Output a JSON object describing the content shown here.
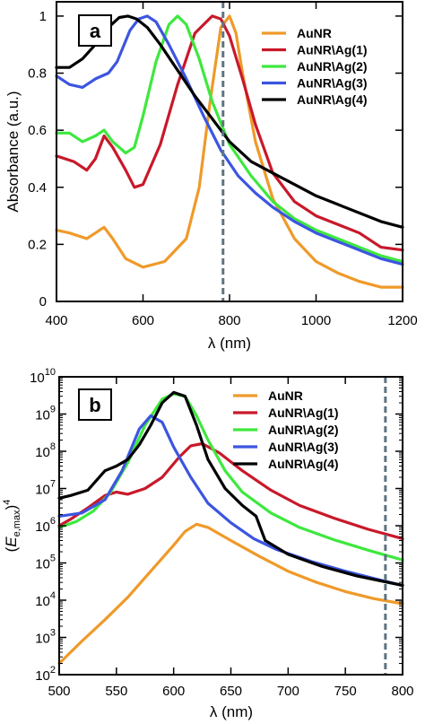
{
  "chart_data": [
    {
      "panel": "a",
      "type": "line",
      "xlabel": "λ (nm)",
      "ylabel": "Absorbance (a.u.)",
      "xlim": [
        400,
        1200
      ],
      "ylim": [
        0,
        1.05
      ],
      "x_ticks": [
        400,
        600,
        800,
        1000,
        1200
      ],
      "x_tick_labels": [
        "400",
        "600",
        "800",
        "1000",
        "1200"
      ],
      "y_ticks": [
        0,
        0.2,
        0.4,
        0.6,
        0.8,
        1
      ],
      "y_tick_labels": [
        "0",
        "0.2",
        "0.4",
        "0.6",
        "0.8",
        "1"
      ],
      "grid": false,
      "legend_position": "top-right",
      "vline": {
        "x": 785,
        "style": "dashed",
        "color": "#5f7381"
      },
      "series": [
        {
          "name": "AuNR",
          "color": "#ef9a2a",
          "x": [
            400,
            430,
            470,
            490,
            510,
            530,
            560,
            600,
            650,
            700,
            730,
            755,
            780,
            800,
            815,
            830,
            860,
            900,
            950,
            1000,
            1050,
            1100,
            1150,
            1200
          ],
          "y": [
            0.25,
            0.24,
            0.22,
            0.24,
            0.26,
            0.22,
            0.15,
            0.12,
            0.14,
            0.22,
            0.4,
            0.7,
            0.96,
            1.0,
            0.94,
            0.8,
            0.56,
            0.36,
            0.22,
            0.14,
            0.1,
            0.07,
            0.05,
            0.05
          ]
        },
        {
          "name": "AuNR\\Ag(1)",
          "color": "#c8192a",
          "x": [
            400,
            440,
            470,
            490,
            510,
            530,
            560,
            580,
            600,
            640,
            680,
            720,
            760,
            780,
            800,
            830,
            860,
            900,
            950,
            1000,
            1050,
            1100,
            1150,
            1200
          ],
          "y": [
            0.51,
            0.49,
            0.46,
            0.5,
            0.58,
            0.54,
            0.46,
            0.4,
            0.41,
            0.55,
            0.76,
            0.94,
            1.0,
            0.99,
            0.93,
            0.78,
            0.62,
            0.45,
            0.35,
            0.3,
            0.27,
            0.24,
            0.19,
            0.18
          ]
        },
        {
          "name": "AuNR\\Ag(2)",
          "color": "#3ee83e",
          "x": [
            400,
            430,
            460,
            490,
            510,
            530,
            560,
            580,
            600,
            630,
            660,
            680,
            700,
            730,
            760,
            800,
            850,
            900,
            950,
            1000,
            1050,
            1100,
            1150,
            1200
          ],
          "y": [
            0.59,
            0.59,
            0.56,
            0.58,
            0.6,
            0.56,
            0.52,
            0.54,
            0.65,
            0.84,
            0.97,
            1.0,
            0.97,
            0.85,
            0.7,
            0.55,
            0.44,
            0.35,
            0.29,
            0.25,
            0.22,
            0.19,
            0.16,
            0.14
          ]
        },
        {
          "name": "AuNR\\Ag(3)",
          "color": "#3c55e0",
          "x": [
            400,
            430,
            460,
            490,
            520,
            540,
            570,
            590,
            610,
            630,
            660,
            700,
            740,
            780,
            820,
            860,
            900,
            950,
            1000,
            1050,
            1100,
            1150,
            1200
          ],
          "y": [
            0.79,
            0.76,
            0.75,
            0.78,
            0.8,
            0.84,
            0.95,
            0.99,
            1.0,
            0.98,
            0.9,
            0.78,
            0.65,
            0.53,
            0.44,
            0.38,
            0.33,
            0.28,
            0.24,
            0.21,
            0.18,
            0.15,
            0.13
          ]
        },
        {
          "name": "AuNR\\Ag(4)",
          "color": "#000000",
          "x": [
            400,
            430,
            460,
            490,
            520,
            545,
            565,
            585,
            610,
            640,
            680,
            720,
            760,
            800,
            850,
            900,
            950,
            1000,
            1050,
            1100,
            1150,
            1200
          ],
          "y": [
            0.82,
            0.82,
            0.85,
            0.9,
            0.96,
            0.995,
            1.0,
            0.99,
            0.96,
            0.9,
            0.81,
            0.72,
            0.64,
            0.56,
            0.49,
            0.45,
            0.41,
            0.37,
            0.34,
            0.31,
            0.28,
            0.26
          ]
        }
      ]
    },
    {
      "panel": "b",
      "type": "line",
      "xlabel": "λ (nm)",
      "ylabel": "(E_e,max)^4",
      "scale_y": "log",
      "xlim": [
        500,
        800
      ],
      "ylim": [
        100,
        10000000000
      ],
      "x_ticks": [
        500,
        550,
        600,
        650,
        700,
        750,
        800
      ],
      "x_tick_labels": [
        "500",
        "550",
        "600",
        "650",
        "700",
        "750",
        "800"
      ],
      "y_ticks": [
        100,
        1000,
        10000,
        100000,
        1000000,
        10000000,
        100000000,
        1000000000,
        10000000000
      ],
      "y_tick_bases": [
        "10",
        "10",
        "10",
        "10",
        "10",
        "10",
        "10",
        "10",
        "10"
      ],
      "y_tick_exps": [
        "2",
        "3",
        "4",
        "5",
        "6",
        "7",
        "8",
        "9",
        "10"
      ],
      "grid": false,
      "legend_position": "top-right",
      "vline": {
        "x": 785,
        "style": "dashed",
        "color": "#5f7381"
      },
      "series": [
        {
          "name": "AuNR",
          "color": "#ef9a2a",
          "x": [
            500,
            520,
            540,
            560,
            580,
            600,
            610,
            620,
            630,
            650,
            675,
            700,
            725,
            750,
            775,
            800
          ],
          "y": [
            200,
            800,
            3000,
            12000,
            60000,
            300000,
            700000,
            1100000,
            900000,
            400000,
            150000,
            60000,
            30000,
            17000,
            11000,
            8000
          ]
        },
        {
          "name": "AuNR\\Ag(1)",
          "color": "#c8192a",
          "x": [
            500,
            510,
            525,
            540,
            550,
            560,
            575,
            590,
            605,
            615,
            625,
            640,
            660,
            685,
            710,
            740,
            770,
            800
          ],
          "y": [
            1000000,
            1500000,
            3000000,
            6500000,
            8000000,
            7000000,
            10000000,
            20000000,
            70000000,
            140000000,
            160000000,
            90000000,
            30000000,
            9000000,
            3500000,
            1600000,
            800000,
            450000
          ]
        },
        {
          "name": "AuNR\\Ag(2)",
          "color": "#3ee83e",
          "x": [
            500,
            515,
            530,
            545,
            560,
            575,
            590,
            600,
            610,
            620,
            630,
            645,
            660,
            685,
            710,
            740,
            770,
            800
          ],
          "y": [
            900000,
            1300000,
            2500000,
            8000000,
            50000000,
            500000000,
            2500000000,
            3500000000,
            3000000000,
            900000000,
            200000000,
            30000000,
            8000000,
            2200000,
            900000,
            420000,
            220000,
            120000
          ]
        },
        {
          "name": "AuNR\\Ag(3)",
          "color": "#3c55e0",
          "x": [
            500,
            520,
            540,
            555,
            570,
            580,
            590,
            600,
            615,
            630,
            650,
            670,
            690,
            720,
            750,
            780,
            800
          ],
          "y": [
            1800000,
            2200000,
            5000000,
            30000000,
            400000000,
            900000000,
            600000000,
            130000000,
            20000000,
            4000000,
            1200000,
            450000,
            230000,
            110000,
            60000,
            35000,
            25000
          ]
        },
        {
          "name": "AuNR\\Ag(4)",
          "color": "#000000",
          "x": [
            500,
            510,
            525,
            540,
            550,
            560,
            570,
            580,
            590,
            600,
            610,
            620,
            630,
            645,
            660,
            672,
            680,
            700,
            730,
            760,
            800
          ],
          "y": [
            5500000,
            6500000,
            9000000,
            30000000,
            40000000,
            60000000,
            150000000,
            500000000,
            2000000000,
            3800000000,
            3000000000,
            500000000,
            60000000,
            10000000,
            3500000,
            1800000,
            400000,
            170000,
            80000,
            45000,
            25000
          ]
        }
      ]
    }
  ]
}
